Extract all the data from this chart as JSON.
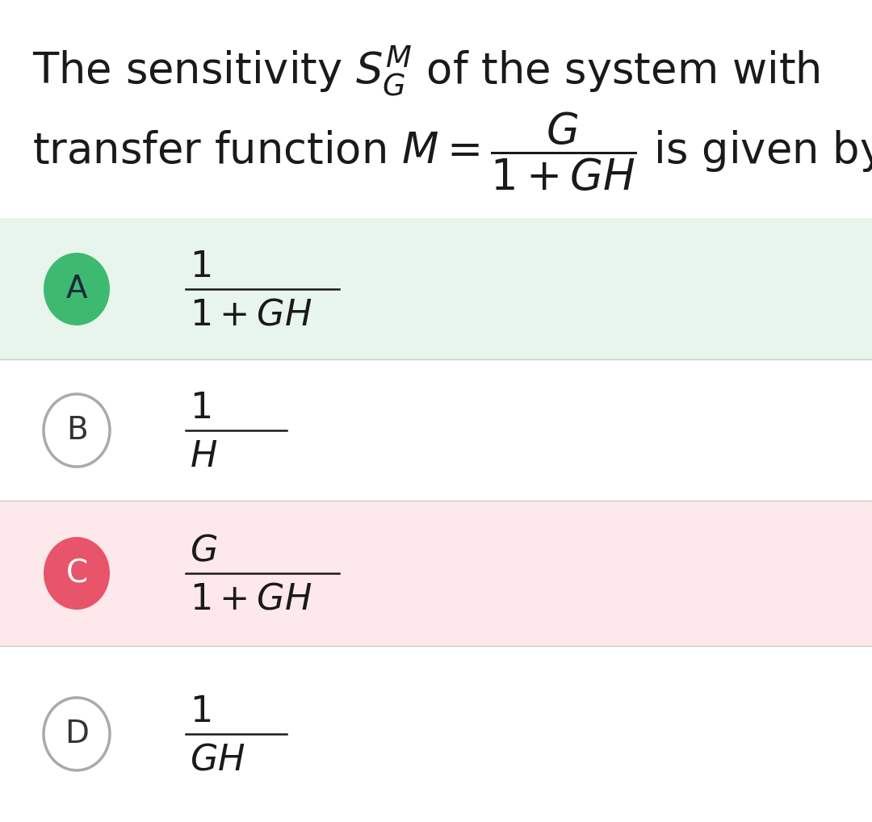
{
  "bg_color": "#ffffff",
  "options": [
    {
      "label": "A",
      "numerator": "1",
      "denominator": "1+GH",
      "denom_italic": true,
      "circle_color": "#3dba6f",
      "circle_edge": "#3dba6f",
      "text_color": "#1a2a3a",
      "bg_color": "#e8f5ec",
      "highlighted": true
    },
    {
      "label": "B",
      "numerator": "1",
      "denominator": "H",
      "denom_italic": true,
      "circle_color": "#ffffff",
      "circle_edge": "#aaaaaa",
      "text_color": "#333333",
      "bg_color": "#ffffff",
      "highlighted": false
    },
    {
      "label": "C",
      "numerator": "G",
      "denominator": "1+GH",
      "denom_italic": true,
      "circle_color": "#e8546a",
      "circle_edge": "#e8546a",
      "text_color": "#ffffff",
      "bg_color": "#fde8eb",
      "highlighted": true
    },
    {
      "label": "D",
      "numerator": "1",
      "denominator": "GH",
      "denom_italic": true,
      "circle_color": "#ffffff",
      "circle_edge": "#aaaaaa",
      "text_color": "#333333",
      "bg_color": "#ffffff",
      "highlighted": false
    }
  ],
  "title_fontsize": 38,
  "option_fontsize": 32,
  "label_fontsize": 28,
  "divider_color": "#cccccc"
}
